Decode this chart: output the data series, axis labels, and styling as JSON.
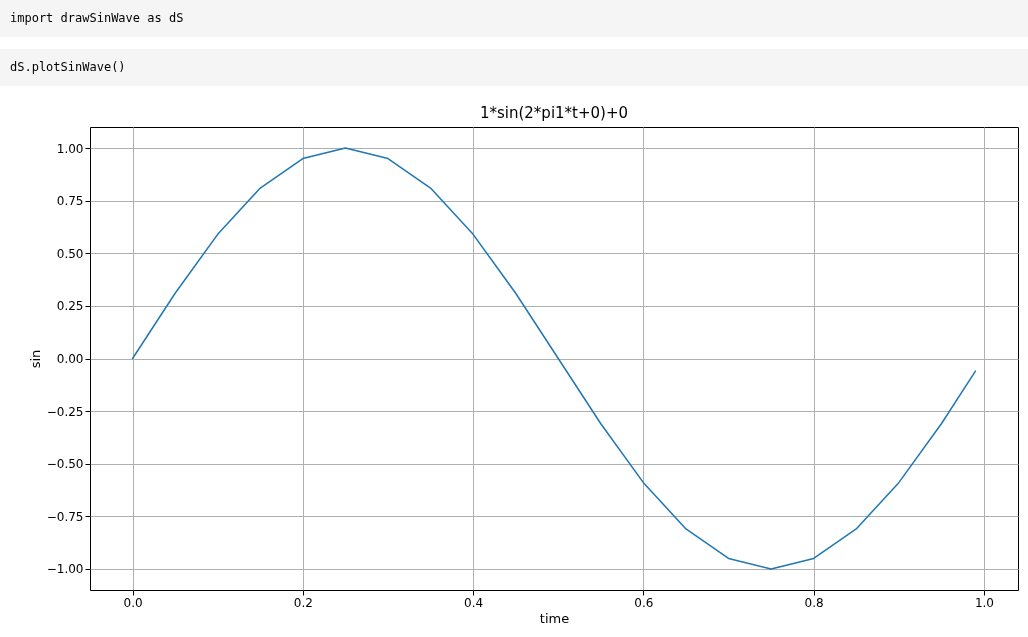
{
  "chart_data": {
    "type": "line",
    "title": "1*sin(2*pi1*t+0)+0",
    "xlabel": "time",
    "ylabel": "sin",
    "annotations": [
      "import drawSinWave as dS",
      "dS.plotSinWave()"
    ],
    "x": [
      0,
      0.05,
      0.1,
      0.15,
      0.2,
      0.25,
      0.3,
      0.35,
      0.4,
      0.45,
      0.5,
      0.55,
      0.6,
      0.65,
      0.7,
      0.75,
      0.8,
      0.85,
      0.9,
      0.95,
      0.99
    ],
    "series": [
      {
        "color": "#1f77b4",
        "values": [
          0,
          0.31,
          0.59,
          0.81,
          0.95,
          1,
          0.95,
          0.81,
          0.59,
          0.31,
          0,
          -0.31,
          -0.59,
          -0.81,
          -0.95,
          -1,
          -0.95,
          -0.81,
          -0.59,
          -0.31,
          -0.06
        ]
      }
    ],
    "xlim": [
      -0.05,
      1.04
    ],
    "ylim": [
      -1.1,
      1.1
    ],
    "xticks": [
      {
        "value": 0,
        "label": "0.0"
      },
      {
        "value": 0.2,
        "label": "0.2"
      },
      {
        "value": 0.4,
        "label": "0.4"
      },
      {
        "value": 0.6,
        "label": "0.6"
      },
      {
        "value": 0.8,
        "label": "0.8"
      },
      {
        "value": 1,
        "label": "1.0"
      }
    ],
    "yticks": [
      {
        "value": -1,
        "label": "−1.00"
      },
      {
        "value": -0.75,
        "label": "−0.75"
      },
      {
        "value": -0.5,
        "label": "−0.50"
      },
      {
        "value": -0.25,
        "label": "−0.25"
      },
      {
        "value": 0,
        "label": "0.00"
      },
      {
        "value": 0.25,
        "label": "0.25"
      },
      {
        "value": 0.5,
        "label": "0.50"
      },
      {
        "value": 0.75,
        "label": "0.75"
      },
      {
        "value": 1,
        "label": "1.00"
      }
    ],
    "grid": true,
    "marker": "none",
    "line_style": "solid"
  }
}
